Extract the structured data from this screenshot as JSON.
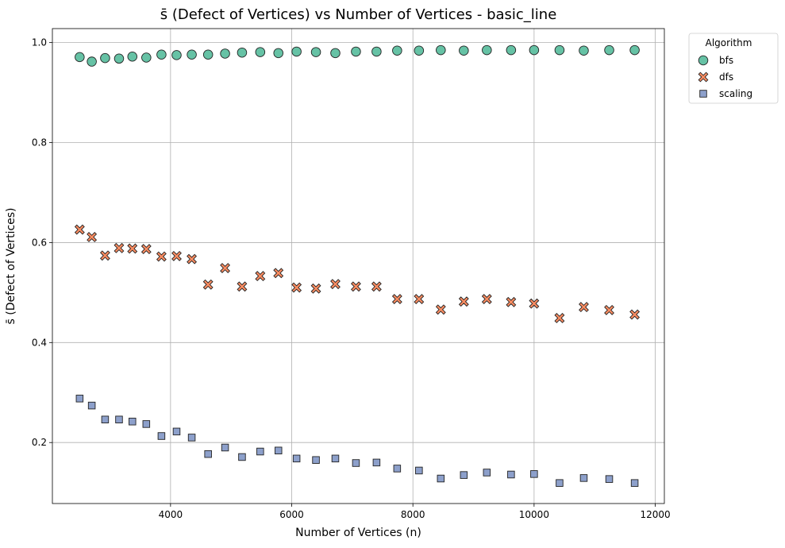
{
  "chart_data": {
    "type": "scatter",
    "title": "s̄ (Defect of Vertices) vs Number of Vertices - basic_line",
    "xlabel": "Number of Vertices (n)",
    "ylabel": "s̄ (Defect of Vertices)",
    "xlim": [
      2050,
      12150
    ],
    "ylim": [
      0.078,
      1.028
    ],
    "xticks": [
      4000,
      6000,
      8000,
      10000,
      12000
    ],
    "xtick_labels": [
      "4000",
      "6000",
      "8000",
      "10000",
      "12000"
    ],
    "yticks": [
      0.2,
      0.4,
      0.6,
      0.8,
      1.0
    ],
    "ytick_labels": [
      "0.2",
      "0.4",
      "0.6",
      "0.8",
      "1.0"
    ],
    "grid": true,
    "legend": {
      "title": "Algorithm",
      "position": "outside-top-right"
    },
    "series": [
      {
        "name": "bfs",
        "marker": "circle",
        "color": "#66c2a5",
        "x": [
          2500,
          2700,
          2920,
          3150,
          3370,
          3600,
          3850,
          4100,
          4350,
          4620,
          4900,
          5180,
          5480,
          5780,
          6080,
          6400,
          6720,
          7060,
          7400,
          7740,
          8100,
          8460,
          8840,
          9220,
          9620,
          10000,
          10420,
          10820,
          11240,
          11660
        ],
        "y": [
          0.971,
          0.962,
          0.969,
          0.968,
          0.972,
          0.97,
          0.976,
          0.975,
          0.976,
          0.976,
          0.978,
          0.98,
          0.981,
          0.979,
          0.982,
          0.981,
          0.979,
          0.982,
          0.982,
          0.984,
          0.984,
          0.985,
          0.984,
          0.985,
          0.985,
          0.985,
          0.985,
          0.984,
          0.985,
          0.985
        ]
      },
      {
        "name": "dfs",
        "marker": "x",
        "color": "#fc8d62",
        "x": [
          2500,
          2700,
          2920,
          3150,
          3370,
          3600,
          3850,
          4100,
          4350,
          4620,
          4900,
          5180,
          5480,
          5780,
          6080,
          6400,
          6720,
          7060,
          7400,
          7740,
          8100,
          8460,
          8840,
          9220,
          9620,
          10000,
          10420,
          10820,
          11240,
          11660
        ],
        "y": [
          0.626,
          0.611,
          0.574,
          0.589,
          0.588,
          0.587,
          0.572,
          0.573,
          0.567,
          0.516,
          0.549,
          0.512,
          0.533,
          0.539,
          0.51,
          0.508,
          0.517,
          0.512,
          0.512,
          0.487,
          0.487,
          0.466,
          0.482,
          0.487,
          0.481,
          0.478,
          0.449,
          0.471,
          0.465,
          0.456
        ]
      },
      {
        "name": "scaling",
        "marker": "square",
        "color": "#8da0cb",
        "x": [
          2500,
          2700,
          2920,
          3150,
          3370,
          3600,
          3850,
          4100,
          4350,
          4620,
          4900,
          5180,
          5480,
          5780,
          6080,
          6400,
          6720,
          7060,
          7400,
          7740,
          8100,
          8460,
          8840,
          9220,
          9620,
          10000,
          10420,
          10820,
          11240,
          11660
        ],
        "y": [
          0.288,
          0.274,
          0.246,
          0.246,
          0.242,
          0.237,
          0.213,
          0.222,
          0.21,
          0.177,
          0.19,
          0.171,
          0.182,
          0.184,
          0.168,
          0.165,
          0.168,
          0.159,
          0.16,
          0.148,
          0.144,
          0.128,
          0.135,
          0.14,
          0.136,
          0.137,
          0.119,
          0.129,
          0.127,
          0.119
        ]
      }
    ]
  }
}
